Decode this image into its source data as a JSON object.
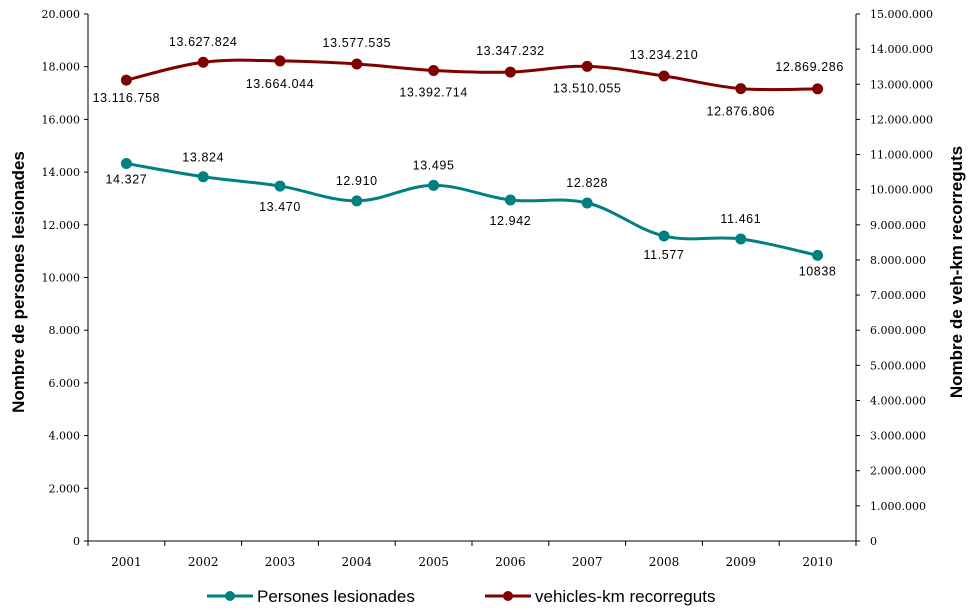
{
  "chart_data": {
    "type": "line",
    "categories": [
      "2001",
      "2002",
      "2003",
      "2004",
      "2005",
      "2006",
      "2007",
      "2008",
      "2009",
      "2010"
    ],
    "y_left": {
      "label": "Nombre de persones lesionades",
      "min": 0,
      "max": 20000,
      "step": 2000,
      "tick_labels": [
        "0",
        "2.000",
        "4.000",
        "6.000",
        "8.000",
        "10.000",
        "12.000",
        "14.000",
        "16.000",
        "18.000",
        "20.000"
      ]
    },
    "y_right": {
      "label": "Nombre de veh-km recorreguts",
      "min": 0,
      "max": 15000000,
      "step": 1000000,
      "tick_labels": [
        "0",
        "1.000.000",
        "2.000.000",
        "3.000.000",
        "4.000.000",
        "5.000.000",
        "6.000.000",
        "7.000.000",
        "8.000.000",
        "9.000.000",
        "10.000.000",
        "11.000.000",
        "12.000.000",
        "13.000.000",
        "14.000.000",
        "15.000.000"
      ]
    },
    "series": [
      {
        "name": "Persones lesionades",
        "axis": "left",
        "color": "#008080",
        "values": [
          14327,
          13824,
          13470,
          12910,
          13495,
          12942,
          12828,
          11577,
          11461,
          10838
        ],
        "labels": [
          "14.327",
          "13.824",
          "13.470",
          "12.910",
          "13.495",
          "12.942",
          "12.828",
          "11.577",
          "11.461",
          "10838"
        ]
      },
      {
        "name": "vehicles-km recorreguts",
        "axis": "right",
        "color": "#800000",
        "values": [
          13116758,
          13627824,
          13664044,
          13577535,
          13392714,
          13347232,
          13510055,
          13234210,
          12876806,
          12869286
        ],
        "labels": [
          "13.116.758",
          "13.627.824",
          "13.664.044",
          "13.577.535",
          "13.392.714",
          "13.347.232",
          "13.510.055",
          "13.234.210",
          "12.876.806",
          "12.869.286"
        ]
      }
    ],
    "legend": {
      "position": "bottom"
    },
    "grid": false
  }
}
